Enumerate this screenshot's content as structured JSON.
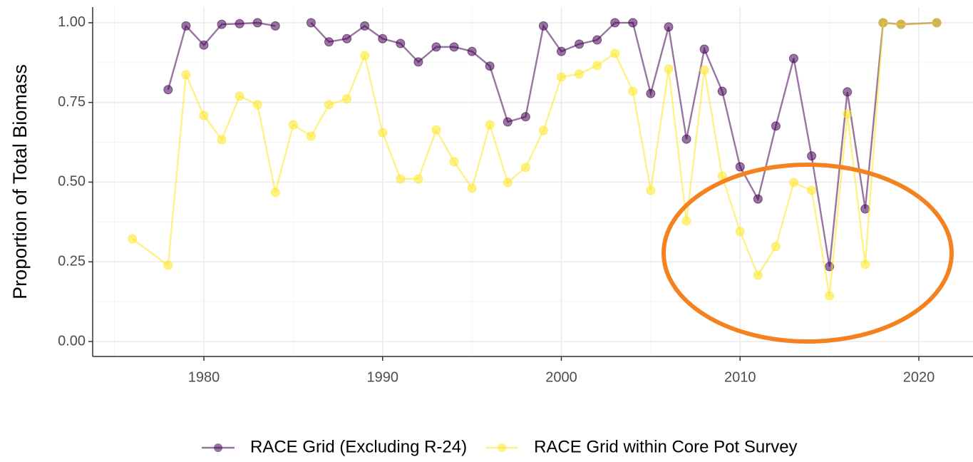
{
  "chart_data": {
    "type": "line",
    "y_label": "Proportion of Total Biomass",
    "xlim": [
      1973.78,
      2023.03
    ],
    "ylim": [
      -0.047,
      1.049
    ],
    "xticks": [
      1980,
      1990,
      2000,
      2010,
      2020
    ],
    "yticks": [
      {
        "value": 0,
        "label": "0.00"
      },
      {
        "value": 0.25,
        "label": "0.25"
      },
      {
        "value": 0.5,
        "label": "0.50"
      },
      {
        "value": 0.75,
        "label": "0.75"
      },
      {
        "value": 1,
        "label": "1.00"
      }
    ],
    "grid": true,
    "legend": "bottom",
    "series": [
      {
        "name": "RACE Grid (Excluding R-24)",
        "color": "#440154",
        "x": [
          1978,
          1979,
          1980,
          1981,
          1982,
          1983,
          1984,
          1985,
          1986,
          1987,
          1988,
          1989,
          1990,
          1991,
          1992,
          1993,
          1994,
          1995,
          1996,
          1997,
          1998,
          1999,
          2000,
          2001,
          2002,
          2003,
          2004,
          2005,
          2006,
          2007,
          2008,
          2009,
          2010,
          2011,
          2012,
          2013,
          2014,
          2015,
          2016,
          2017,
          2018,
          2019,
          2021
        ],
        "values": [
          0.79,
          0.99,
          0.93,
          0.995,
          0.997,
          1.0,
          0.99,
          null,
          1.0,
          0.94,
          0.95,
          0.99,
          0.95,
          0.935,
          0.877,
          0.924,
          0.924,
          0.91,
          0.864,
          0.689,
          0.705,
          0.99,
          0.91,
          0.933,
          0.946,
          1.0,
          1.0,
          0.778,
          0.987,
          0.635,
          0.917,
          0.785,
          0.548,
          0.447,
          0.676,
          0.888,
          0.582,
          0.235,
          0.783,
          0.416,
          1.0,
          0.995,
          1.0
        ]
      },
      {
        "name": "RACE Grid within Core Pot Survey",
        "color": "#FDE725",
        "x": [
          1976,
          1978,
          1979,
          1980,
          1981,
          1982,
          1983,
          1984,
          1985,
          1986,
          1987,
          1988,
          1989,
          1990,
          1991,
          1992,
          1993,
          1994,
          1995,
          1996,
          1997,
          1998,
          1999,
          2000,
          2001,
          2002,
          2003,
          2004,
          2005,
          2006,
          2007,
          2008,
          2009,
          2010,
          2011,
          2012,
          2013,
          2014,
          2015,
          2016,
          2017,
          2018,
          2019,
          2021
        ],
        "values": [
          0.322,
          0.239,
          0.837,
          0.709,
          0.633,
          0.77,
          0.743,
          0.468,
          0.68,
          0.644,
          0.743,
          0.761,
          0.897,
          0.655,
          0.51,
          0.51,
          0.664,
          0.564,
          0.481,
          0.68,
          0.499,
          0.546,
          0.662,
          0.83,
          0.839,
          0.866,
          0.904,
          0.785,
          0.474,
          0.855,
          0.378,
          0.852,
          0.519,
          0.345,
          0.208,
          0.298,
          0.499,
          0.474,
          0.143,
          0.714,
          0.242,
          1.0,
          0.995,
          1.0
        ]
      }
    ]
  }
}
